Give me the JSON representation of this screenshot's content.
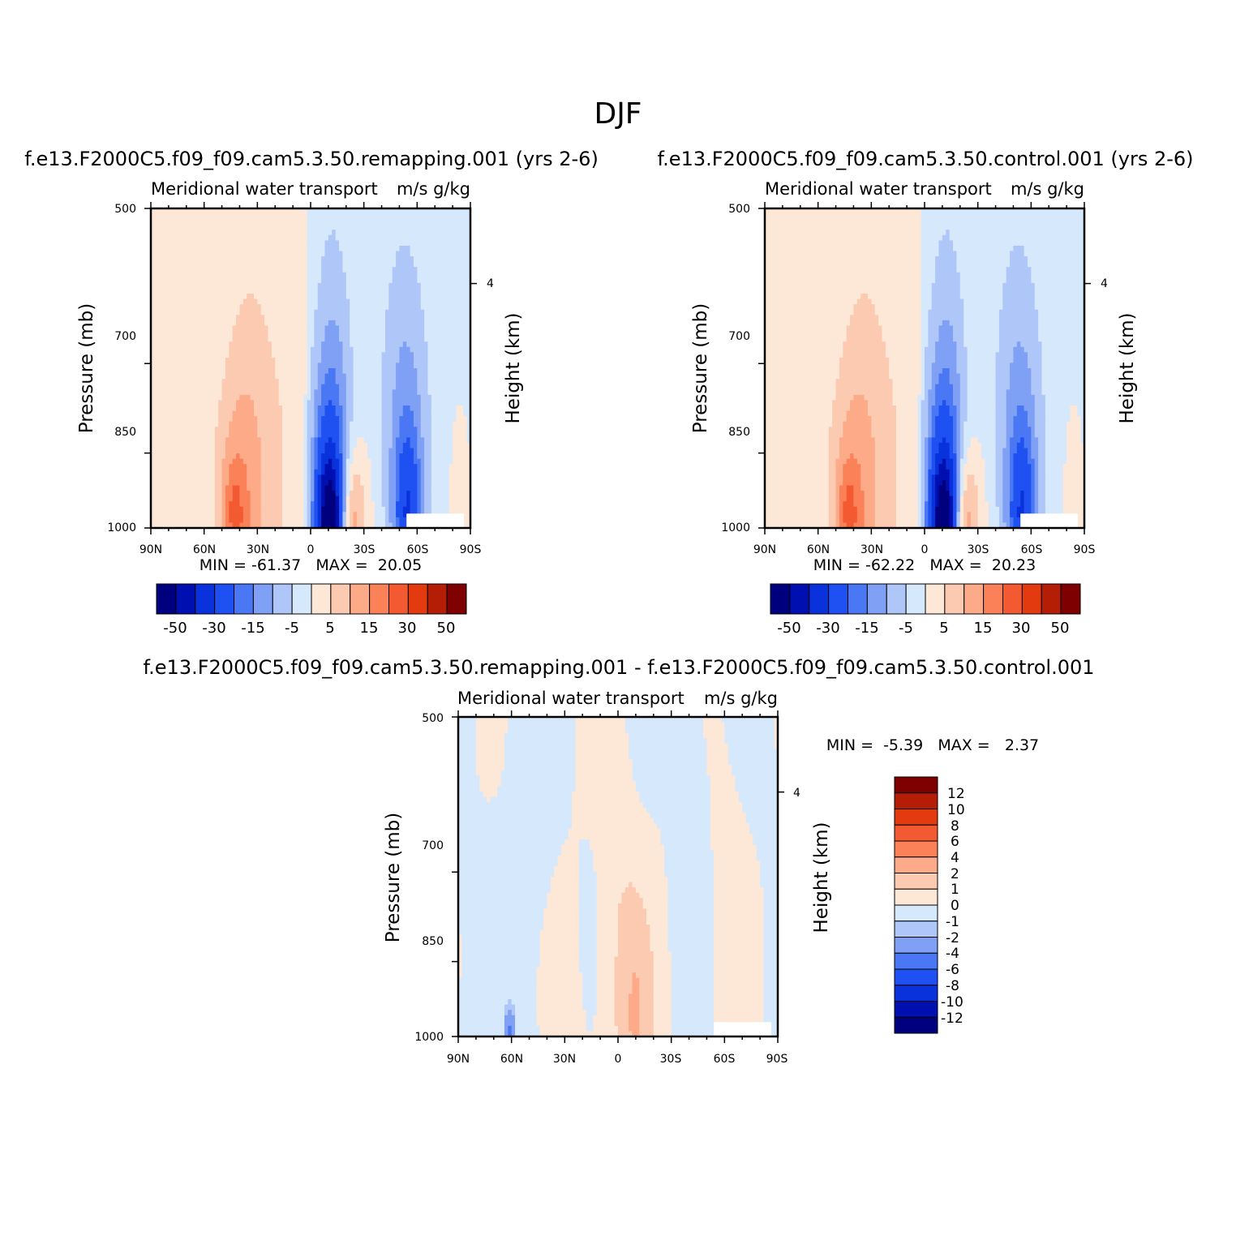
{
  "figure": {
    "title": "DJF"
  },
  "colors": {
    "fill_levels": [
      "#00007f",
      "#0010b0",
      "#0a32dc",
      "#1e50f2",
      "#4a78f4",
      "#7fa0f4",
      "#aec6f8",
      "#d6e8fc",
      "#fde8d8",
      "#fccab0",
      "#fcaa88",
      "#fb8258",
      "#f45a32",
      "#e43a10",
      "#b41e06",
      "#7e0000"
    ],
    "axis": "#000000",
    "missing": "#ffffff"
  },
  "chart_data": [
    {
      "id": "remapping",
      "type": "contour",
      "title": "f.e13.F2000C5.f09_f09.cam5.3.50.remapping.001 (yrs 2-6)",
      "left_string": "Meridional water transport",
      "right_string": "m/s g/kg",
      "ylabel": "Pressure (mb)",
      "ylabel_right": "Height (km)",
      "y_ticks": [
        "500",
        "700",
        "850",
        "1000"
      ],
      "y_right_ticks": [
        "4"
      ],
      "x_ticks": [
        "90N",
        "60N",
        "30N",
        "0",
        "30S",
        "60S",
        "90S"
      ],
      "xlim": [
        90,
        -90
      ],
      "ylim": [
        500,
        1000
      ],
      "min_max_text": "MIN = -61.37   MAX =  20.05",
      "min": -61.37,
      "max": 20.05,
      "colorbar_orientation": "horizontal",
      "colorbar_labels": [
        "-50",
        "-30",
        "-15",
        "-5",
        "5",
        "15",
        "30",
        "50"
      ],
      "levels": [
        -60,
        -50,
        -40,
        -30,
        -20,
        -15,
        -10,
        -5,
        0,
        5,
        10,
        15,
        20,
        30,
        40,
        50,
        60
      ]
    },
    {
      "id": "control",
      "type": "contour",
      "title": "f.e13.F2000C5.f09_f09.cam5.3.50.control.001 (yrs 2-6)",
      "left_string": "Meridional water transport",
      "right_string": "m/s g/kg",
      "ylabel": "Pressure (mb)",
      "ylabel_right": "Height (km)",
      "y_ticks": [
        "500",
        "700",
        "850",
        "1000"
      ],
      "y_right_ticks": [
        "4"
      ],
      "x_ticks": [
        "90N",
        "60N",
        "30N",
        "0",
        "30S",
        "60S",
        "90S"
      ],
      "xlim": [
        90,
        -90
      ],
      "ylim": [
        500,
        1000
      ],
      "min_max_text": "MIN = -62.22   MAX =  20.23",
      "min": -62.22,
      "max": 20.23,
      "colorbar_orientation": "horizontal",
      "colorbar_labels": [
        "-50",
        "-30",
        "-15",
        "-5",
        "5",
        "15",
        "30",
        "50"
      ],
      "levels": [
        -60,
        -50,
        -40,
        -30,
        -20,
        -15,
        -10,
        -5,
        0,
        5,
        10,
        15,
        20,
        30,
        40,
        50,
        60
      ]
    },
    {
      "id": "difference",
      "type": "contour",
      "title": "f.e13.F2000C5.f09_f09.cam5.3.50.remapping.001 - f.e13.F2000C5.f09_f09.cam5.3.50.control.001",
      "left_string": "Meridional water transport",
      "right_string": "m/s g/kg",
      "ylabel": "Pressure (mb)",
      "ylabel_right": "Height (km)",
      "y_ticks": [
        "500",
        "700",
        "850",
        "1000"
      ],
      "y_right_ticks": [
        "4"
      ],
      "x_ticks": [
        "90N",
        "60N",
        "30N",
        "0",
        "30S",
        "60S",
        "90S"
      ],
      "xlim": [
        90,
        -90
      ],
      "ylim": [
        500,
        1000
      ],
      "min_max_text": "MIN =  -5.39   MAX =   2.37",
      "min": -5.39,
      "max": 2.37,
      "colorbar_orientation": "vertical",
      "colorbar_labels": [
        "12",
        "10",
        "8",
        "6",
        "4",
        "2",
        "1",
        "0",
        "-1",
        "-2",
        "-4",
        "-6",
        "-8",
        "-10",
        "-12"
      ],
      "levels": [
        -14,
        -12,
        -10,
        -8,
        -6,
        -4,
        -2,
        -1,
        0,
        1,
        2,
        4,
        6,
        8,
        10,
        12,
        14
      ]
    }
  ]
}
